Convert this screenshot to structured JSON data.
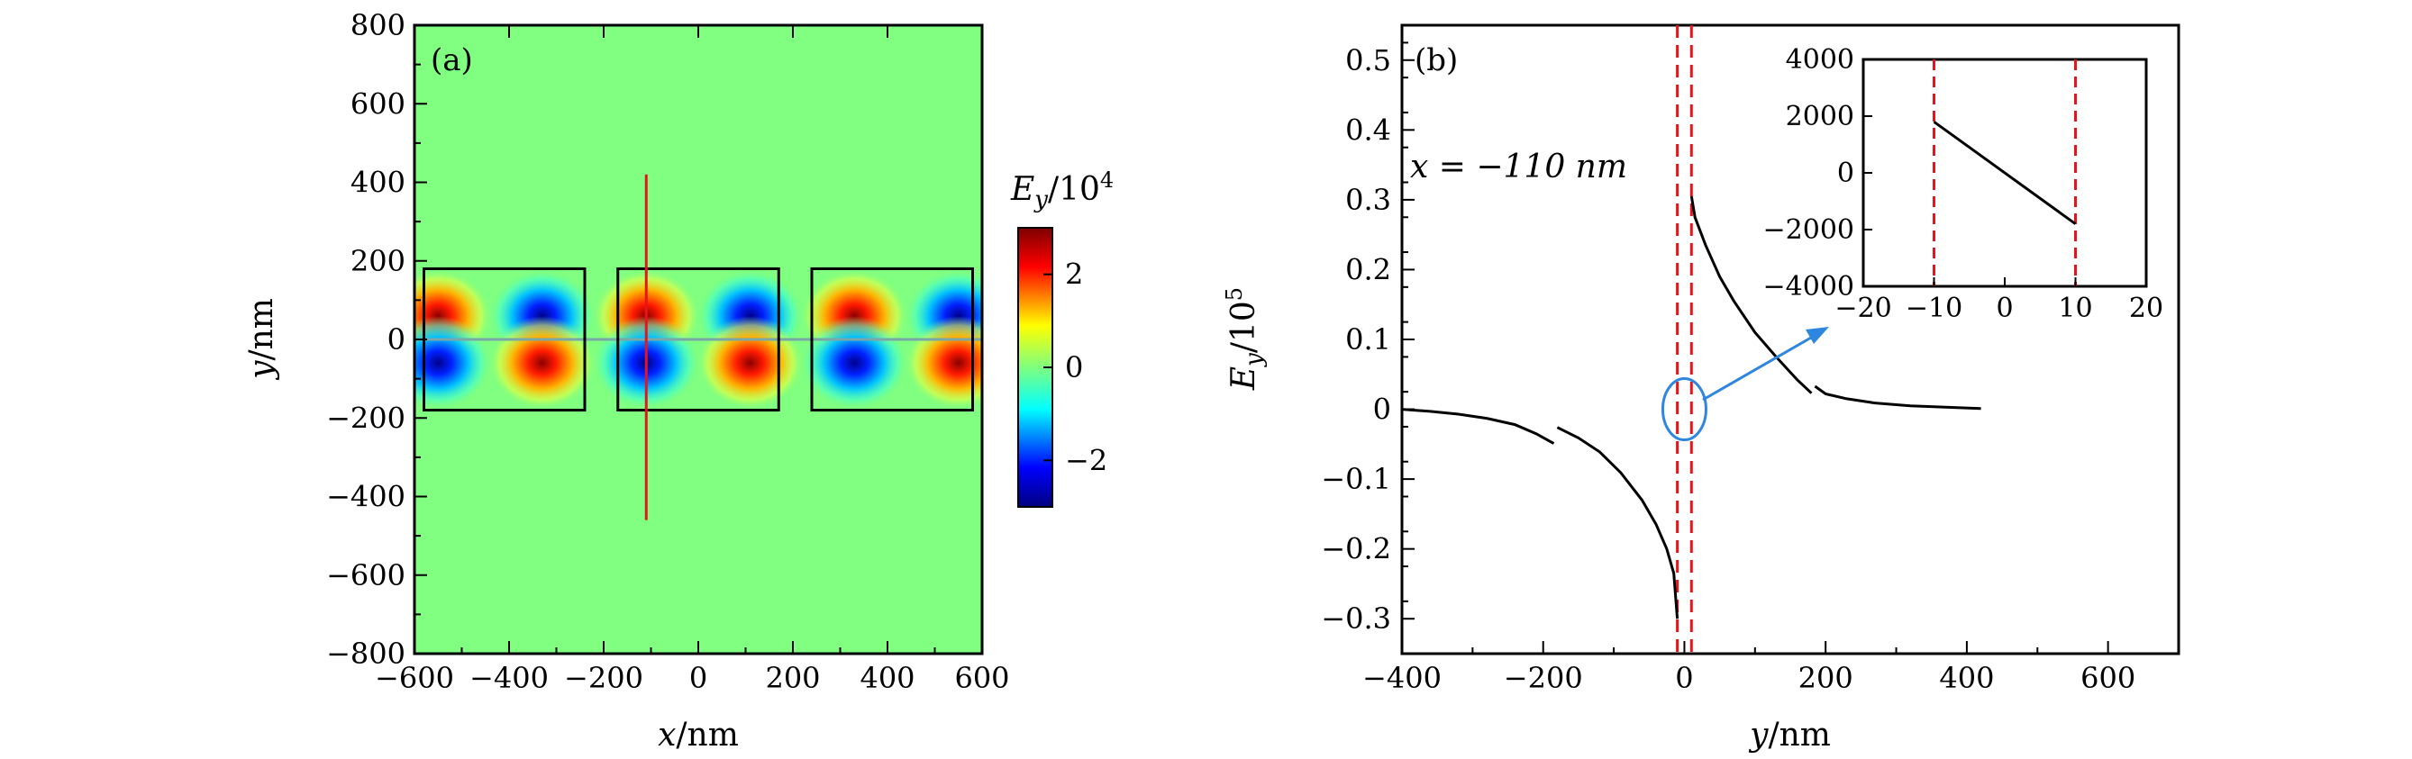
{
  "chart_data": [
    {
      "panel": "(a)",
      "type": "heatmap",
      "xlabel": "x/nm",
      "ylabel": "y/nm",
      "xlim": [
        -600,
        600
      ],
      "ylim": [
        -800,
        800
      ],
      "xticks": [
        -600,
        -400,
        -200,
        0,
        200,
        400,
        600
      ],
      "yticks": [
        -800,
        -600,
        -400,
        -200,
        0,
        200,
        400,
        600,
        800
      ],
      "xtick_labels": [
        "−600",
        "−400",
        "−200",
        "0",
        "200",
        "400",
        "600"
      ],
      "ytick_labels": [
        "−800",
        "−600",
        "−400",
        "−200",
        "0",
        "200",
        "400",
        "600",
        "800"
      ],
      "colorbar": {
        "label": "E_y/10^4",
        "range": [
          -3,
          3
        ],
        "ticks": [
          2,
          0,
          -2
        ],
        "tick_labels": [
          "2",
          "0",
          "−2"
        ],
        "colors": [
          "#00007f",
          "#0000ff",
          "#00ffff",
          "#7fff7f",
          "#ffff00",
          "#ff0000",
          "#7f0000"
        ]
      },
      "field_lobes_top": [
        {
          "x": -550,
          "sign": 1
        },
        {
          "x": -330,
          "sign": -1
        },
        {
          "x": -110,
          "sign": 1
        },
        {
          "x": 110,
          "sign": -1
        },
        {
          "x": 330,
          "sign": 1
        },
        {
          "x": 550,
          "sign": -1
        }
      ],
      "rectangles": [
        {
          "x0": -580,
          "x1": -240,
          "y0": -180,
          "y1": 180
        },
        {
          "x0": -170,
          "x1": 170,
          "y0": -180,
          "y1": 180
        },
        {
          "x0": 240,
          "x1": 580,
          "y0": -180,
          "y1": 180
        }
      ],
      "cut_line": {
        "x": -110,
        "y0": -460,
        "y1": 420,
        "color": "#e8141b"
      }
    },
    {
      "panel": "(b)",
      "type": "line",
      "xlabel": "y/nm",
      "ylabel": "E_y/10^5",
      "xlim": [
        -400,
        700
      ],
      "ylim": [
        -0.35,
        0.55
      ],
      "xticks": [
        -400,
        -200,
        0,
        200,
        400,
        600
      ],
      "yticks": [
        -0.3,
        -0.2,
        -0.1,
        0,
        0.1,
        0.2,
        0.3,
        0.4,
        0.5
      ],
      "xtick_labels": [
        "−400",
        "−200",
        "0",
        "200",
        "400",
        "600"
      ],
      "ytick_labels": [
        "−0.3",
        "−0.2",
        "−0.1",
        "0",
        "0.1",
        "0.2",
        "0.3",
        "0.4",
        "0.5"
      ],
      "annotation": "x = −110 nm",
      "series": [
        {
          "segments": [
            [
              [
                -400,
                0.0
              ],
              [
                -360,
                -0.003
              ],
              [
                -320,
                -0.007
              ],
              [
                -280,
                -0.013
              ],
              [
                -240,
                -0.022
              ],
              [
                -210,
                -0.035
              ],
              [
                -185,
                -0.049
              ]
            ],
            [
              [
                -180,
                -0.026
              ],
              [
                -150,
                -0.041
              ],
              [
                -120,
                -0.061
              ],
              [
                -90,
                -0.091
              ],
              [
                -60,
                -0.13
              ],
              [
                -40,
                -0.165
              ],
              [
                -25,
                -0.2
              ],
              [
                -15,
                -0.235
              ],
              [
                -10,
                -0.3
              ]
            ],
            [
              [
                10,
                0.305
              ],
              [
                15,
                0.275
              ],
              [
                30,
                0.235
              ],
              [
                50,
                0.19
              ],
              [
                70,
                0.155
              ],
              [
                100,
                0.11
              ],
              [
                130,
                0.075
              ],
              [
                160,
                0.042
              ],
              [
                180,
                0.023
              ]
            ],
            [
              [
                185,
                0.033
              ],
              [
                200,
                0.022
              ],
              [
                230,
                0.015
              ],
              [
                270,
                0.009
              ],
              [
                320,
                0.005
              ],
              [
                370,
                0.003
              ],
              [
                420,
                0.001
              ]
            ]
          ]
        }
      ],
      "vlines": [
        -10,
        10
      ],
      "vline_color": "#e8141b",
      "ellipse": {
        "x": 0,
        "y": 0,
        "color": "#2e86de"
      },
      "inset": {
        "xlim": [
          -20,
          20
        ],
        "ylim": [
          -4000,
          4000
        ],
        "xticks": [
          -20,
          -10,
          0,
          10,
          20
        ],
        "yticks": [
          4000,
          2000,
          0,
          -2000,
          -4000
        ],
        "xtick_labels": [
          "−20",
          "−10",
          "0",
          "10",
          "20"
        ],
        "ytick_labels": [
          "4000",
          "2000",
          "0",
          "−2000",
          "−4000"
        ],
        "line": [
          [
            -10,
            1800
          ],
          [
            10,
            -1800
          ]
        ],
        "vlines": [
          -10,
          10
        ]
      }
    }
  ]
}
